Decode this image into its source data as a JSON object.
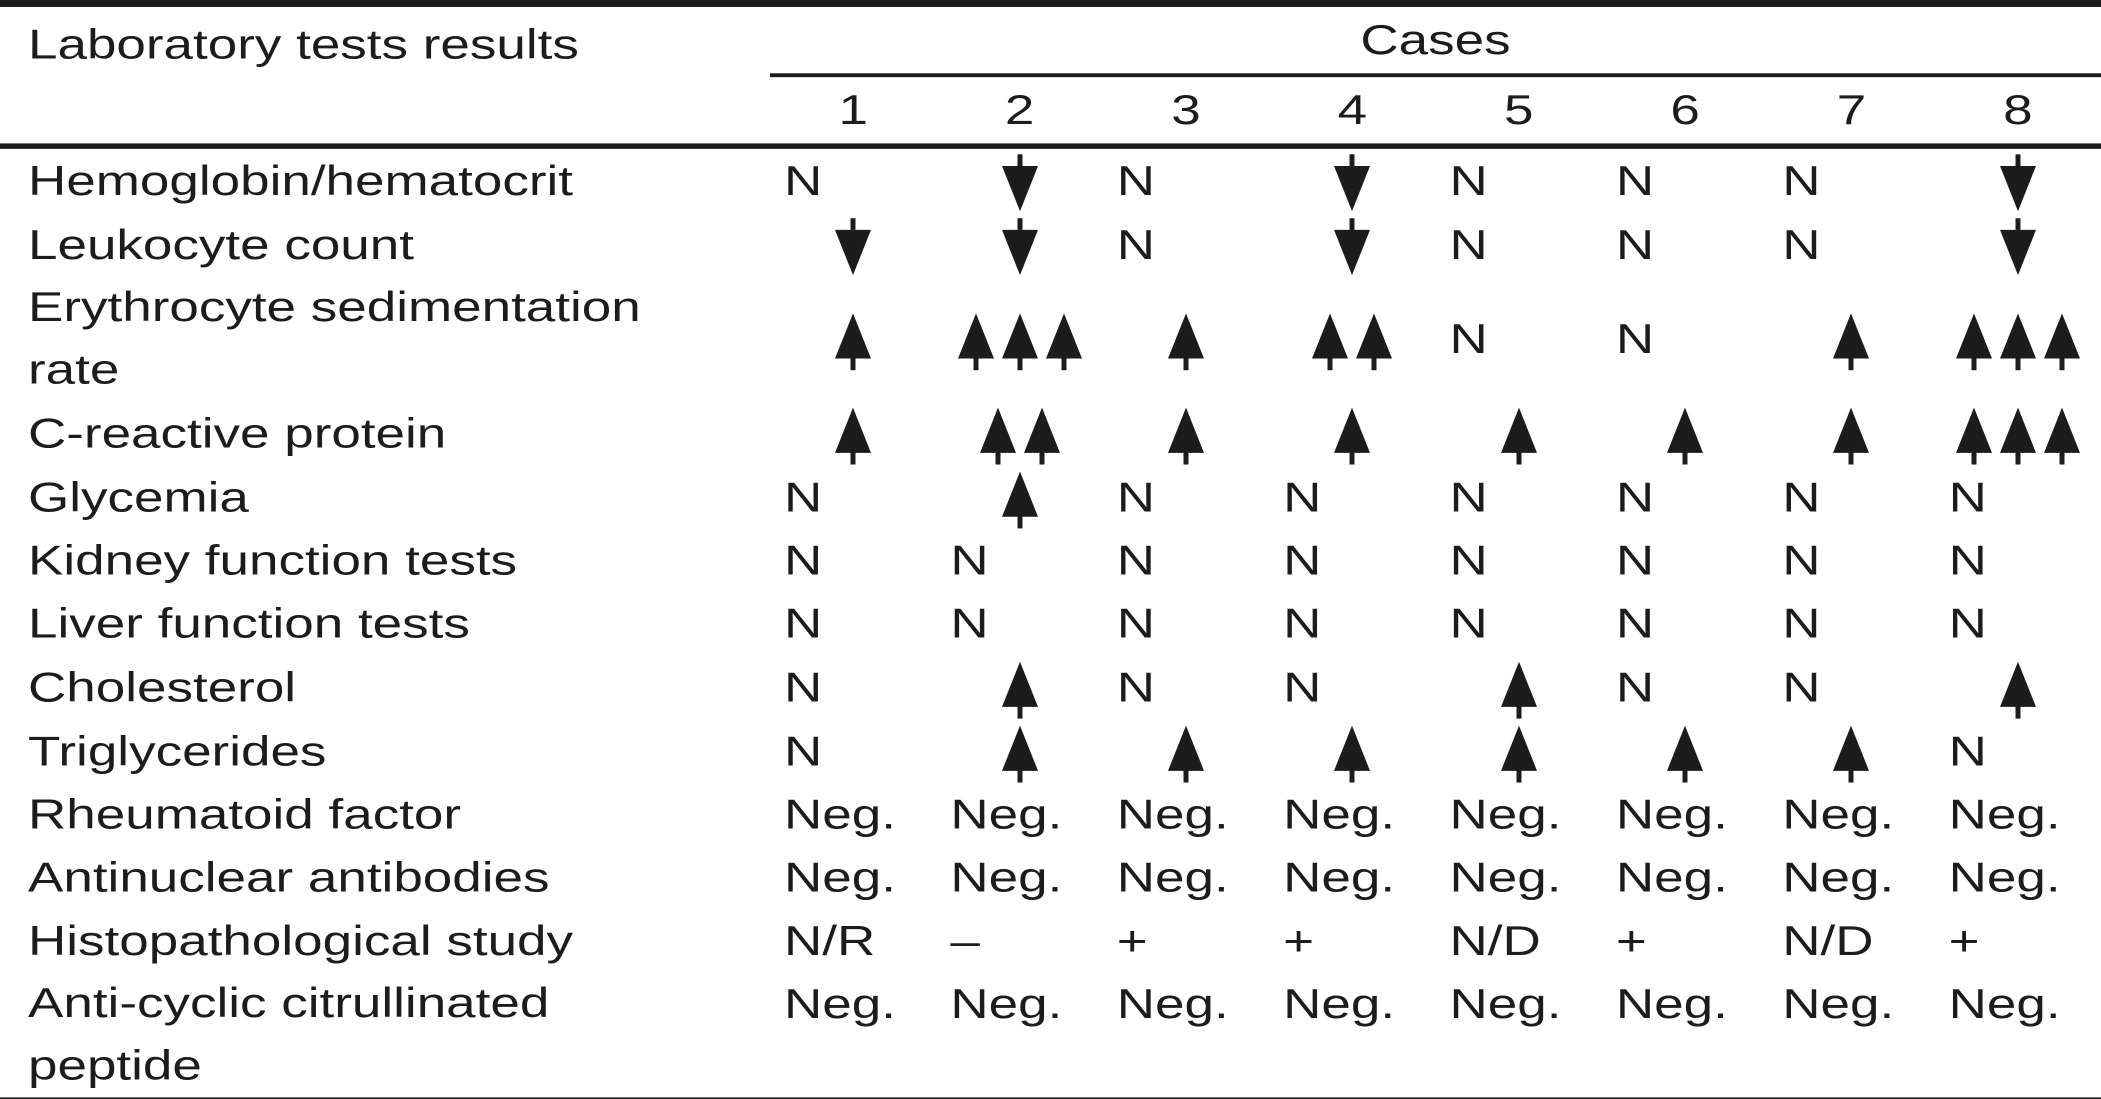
{
  "table": {
    "corner_label": "Laboratory tests results",
    "cases_label": "Cases",
    "case_numbers": [
      "1",
      "2",
      "3",
      "4",
      "5",
      "6",
      "7",
      "8"
    ],
    "rows": [
      {
        "label": "Hemoglobin/hematocrit",
        "values": [
          "N",
          "↓",
          "N",
          "↓",
          "N",
          "N",
          "N",
          "↓"
        ]
      },
      {
        "label": "Leukocyte count",
        "values": [
          "↓",
          "↓",
          "N",
          "↓",
          "N",
          "N",
          "N",
          "↓"
        ]
      },
      {
        "label": "Erythrocyte sedimentation rate",
        "label_lines": [
          "Erythrocyte sedimentation",
          "rate"
        ],
        "values": [
          "↑",
          "↑↑↑",
          "↑",
          "↑↑",
          "N",
          "N",
          "↑",
          "↑↑↑"
        ]
      },
      {
        "label": "C-reactive protein",
        "values": [
          "↑",
          "↑↑",
          "↑",
          "↑",
          "↑",
          "↑",
          "↑",
          "↑↑↑"
        ]
      },
      {
        "label": "Glycemia",
        "values": [
          "N",
          "↑",
          "N",
          "N",
          "N",
          "N",
          "N",
          "N"
        ]
      },
      {
        "label": "Kidney function tests",
        "values": [
          "N",
          "N",
          "N",
          "N",
          "N",
          "N",
          "N",
          "N"
        ]
      },
      {
        "label": "Liver function tests",
        "values": [
          "N",
          "N",
          "N",
          "N",
          "N",
          "N",
          "N",
          "N"
        ]
      },
      {
        "label": "Cholesterol",
        "values": [
          "N",
          "↑",
          "N",
          "N",
          "↑",
          "N",
          "N",
          "↑"
        ]
      },
      {
        "label": "Triglycerides",
        "values": [
          "N",
          "↑",
          "↑",
          "↑",
          "↑",
          "↑",
          "↑",
          "N"
        ]
      },
      {
        "label": "Rheumatoid factor",
        "values": [
          "Neg.",
          "Neg.",
          "Neg.",
          "Neg.",
          "Neg.",
          "Neg.",
          "Neg.",
          "Neg."
        ]
      },
      {
        "label": "Antinuclear antibodies",
        "values": [
          "Neg.",
          "Neg.",
          "Neg.",
          "Neg.",
          "Neg.",
          "Neg.",
          "Neg.",
          "Neg."
        ]
      },
      {
        "label": "Histopathological study",
        "values": [
          "N/R",
          "–",
          "+",
          "+",
          "N/D",
          "+",
          "N/D",
          "+"
        ]
      },
      {
        "label": "Anti-cyclic citrullinated peptide",
        "label_lines": [
          "Anti-cyclic citrullinated",
          "peptide"
        ],
        "values": [
          "Neg.",
          "Neg.",
          "Neg.",
          "Neg.",
          "Neg.",
          "Neg.",
          "Neg.",
          "Neg."
        ],
        "values_on_first_line": true
      }
    ],
    "icons": {
      "up-arrow-icon": "↑",
      "down-arrow-icon": "↓"
    },
    "colors": {
      "text": "#1c1c1c",
      "border": "#1c1c1c",
      "background": "#ffffff"
    }
  }
}
